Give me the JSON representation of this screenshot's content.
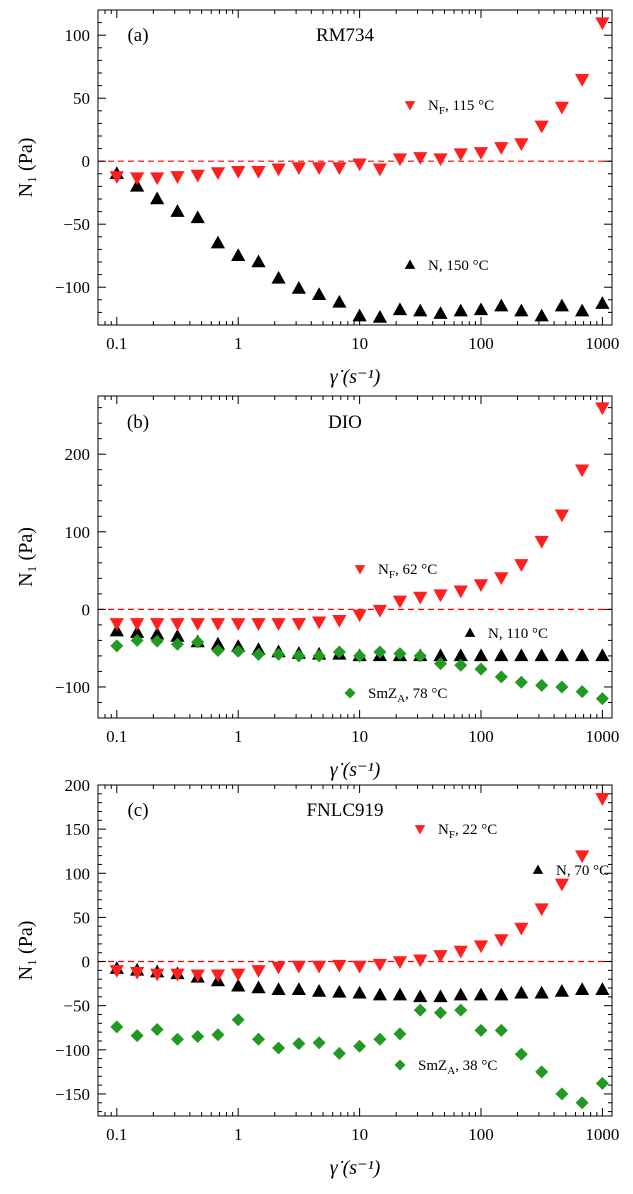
{
  "chart_data": [
    {
      "type": "scatter",
      "panel_label": "(a)",
      "title": "RM734",
      "xlabel": "γ̇ (s⁻¹)",
      "ylabel": "N₁ (Pa)",
      "xscale": "log",
      "xlim": [
        0.07,
        1200
      ],
      "ylim": [
        -130,
        120
      ],
      "xticks": [
        0.1,
        1,
        10,
        100,
        1000
      ],
      "xtick_labels": [
        "0.1",
        "1",
        "10",
        "100",
        "1000"
      ],
      "yticks": [
        -100,
        -50,
        0,
        50,
        100
      ],
      "ytick_labels": [
        "−100",
        "−50",
        "0",
        "50",
        "100"
      ],
      "reference_line": {
        "y": 0,
        "style": "dashed",
        "color": "#ff0000"
      },
      "series": [
        {
          "name": "N",
          "legend_main": "N",
          "legend_sub": "",
          "legend_rest": ", 150 °C",
          "marker": "triangle-up",
          "color": "#000000",
          "legend_position": "lower-middle",
          "x": [
            0.1,
            0.147,
            0.215,
            0.316,
            0.464,
            0.681,
            1.0,
            1.47,
            2.15,
            3.16,
            4.64,
            6.81,
            10.0,
            14.7,
            21.5,
            31.6,
            46.4,
            68.1,
            100,
            147,
            215,
            316,
            464,
            681,
            1000
          ],
          "y": [
            -10,
            -20,
            -30,
            -40,
            -45,
            -65,
            -75,
            -80,
            -93,
            -101,
            -106,
            -112,
            -123,
            -124,
            -118,
            -119,
            -121,
            -119,
            -118,
            -115,
            -119,
            -123,
            -115,
            -119,
            -113
          ]
        },
        {
          "name": "NF",
          "legend_main": "N",
          "legend_sub": "F",
          "legend_rest": ", 115 °C",
          "marker": "triangle-down",
          "color": "#ff1f1f",
          "legend_position": "upper-right",
          "x": [
            0.1,
            0.147,
            0.215,
            0.316,
            0.464,
            0.681,
            1.0,
            1.47,
            2.15,
            3.16,
            4.64,
            6.81,
            10.0,
            14.7,
            21.5,
            31.6,
            46.4,
            68.1,
            100,
            147,
            215,
            316,
            464,
            681,
            1000
          ],
          "y": [
            -12,
            -13,
            -13,
            -12,
            -11,
            -9,
            -8,
            -8,
            -6,
            -5,
            -5,
            -5,
            -2,
            -6,
            2,
            3,
            2,
            6,
            7,
            11,
            14,
            28,
            43,
            65,
            110
          ]
        }
      ]
    },
    {
      "type": "scatter",
      "panel_label": "(b)",
      "title": "DIO",
      "xlabel": "γ̇ (s⁻¹)",
      "ylabel": "N₁ (Pa)",
      "xscale": "log",
      "xlim": [
        0.07,
        1200
      ],
      "ylim": [
        -140,
        275
      ],
      "xticks": [
        0.1,
        1,
        10,
        100,
        1000
      ],
      "xtick_labels": [
        "0.1",
        "1",
        "10",
        "100",
        "1000"
      ],
      "yticks": [
        -100,
        0,
        100,
        200
      ],
      "ytick_labels": [
        "−100",
        "0",
        "100",
        "200"
      ],
      "reference_line": {
        "y": 0,
        "style": "dashed",
        "color": "#ff0000"
      },
      "series": [
        {
          "name": "N",
          "legend_main": "N",
          "legend_sub": "",
          "legend_rest": ", 110 °C",
          "marker": "triangle-up",
          "color": "#000000",
          "legend_position": "middle-right",
          "x": [
            0.1,
            0.147,
            0.215,
            0.316,
            0.464,
            0.681,
            1.0,
            1.47,
            2.15,
            3.16,
            4.64,
            6.81,
            10.0,
            14.7,
            21.5,
            31.6,
            46.4,
            68.1,
            100,
            147,
            215,
            316,
            464,
            681,
            1000
          ],
          "y": [
            -28,
            -30,
            -32,
            -35,
            -42,
            -45,
            -48,
            -52,
            -55,
            -57,
            -58,
            -58,
            -60,
            -60,
            -60,
            -60,
            -60,
            -60,
            -60,
            -60,
            -60,
            -60,
            -60,
            -60,
            -60
          ]
        },
        {
          "name": "NF",
          "legend_main": "N",
          "legend_sub": "F",
          "legend_rest": ", 62 °C",
          "marker": "triangle-down",
          "color": "#ff1f1f",
          "legend_position": "center",
          "x": [
            0.1,
            0.147,
            0.215,
            0.316,
            0.464,
            0.681,
            1.0,
            1.47,
            2.15,
            3.16,
            4.64,
            6.81,
            10.0,
            14.7,
            21.5,
            31.6,
            46.4,
            68.1,
            100,
            147,
            215,
            316,
            464,
            681,
            1000
          ],
          "y": [
            -18,
            -18,
            -18,
            -18,
            -18,
            -18,
            -18,
            -18,
            -18,
            -18,
            -16,
            -14,
            -7,
            -1,
            11,
            16,
            19,
            24,
            32,
            41,
            58,
            88,
            122,
            180,
            260
          ]
        },
        {
          "name": "SmZA",
          "legend_main": "SmZ",
          "legend_sub": "A",
          "legend_rest": ", 78 °C",
          "marker": "diamond",
          "color": "#229922",
          "legend_position": "lower-middle",
          "x": [
            0.1,
            0.147,
            0.215,
            0.316,
            0.464,
            0.681,
            1.0,
            1.47,
            2.15,
            3.16,
            4.64,
            6.81,
            10.0,
            14.7,
            21.5,
            31.6,
            46.4,
            68.1,
            100,
            147,
            215,
            316,
            464,
            681,
            1000
          ],
          "y": [
            -47,
            -40,
            -41,
            -45,
            -42,
            -53,
            -54,
            -58,
            -58,
            -60,
            -60,
            -55,
            -60,
            -55,
            -57,
            -60,
            -70,
            -72,
            -77,
            -87,
            -94,
            -98,
            -100,
            -106,
            -115
          ]
        }
      ]
    },
    {
      "type": "scatter",
      "panel_label": "(c)",
      "title": "FNLC919",
      "xlabel": "γ̇ (s⁻¹)",
      "ylabel": "N₁ (Pa)",
      "xscale": "log",
      "xlim": [
        0.07,
        1200
      ],
      "ylim": [
        -175,
        200
      ],
      "xticks": [
        0.1,
        1,
        10,
        100,
        1000
      ],
      "xtick_labels": [
        "0.1",
        "1",
        "10",
        "100",
        "1000"
      ],
      "yticks": [
        -150,
        -100,
        -50,
        0,
        50,
        100,
        150,
        200
      ],
      "ytick_labels": [
        "−150",
        "−100",
        "−50",
        "0",
        "50",
        "100",
        "150",
        "200"
      ],
      "reference_line": {
        "y": 0,
        "style": "dashed",
        "color": "#ff0000"
      },
      "series": [
        {
          "name": "N",
          "legend_main": "N",
          "legend_sub": "",
          "legend_rest": ", 70 °C",
          "marker": "triangle-up",
          "color": "#000000",
          "legend_position": "middle-right",
          "x": [
            0.1,
            0.147,
            0.215,
            0.316,
            0.464,
            0.681,
            1.0,
            1.47,
            2.15,
            3.16,
            4.64,
            6.81,
            10.0,
            14.7,
            21.5,
            31.6,
            46.4,
            68.1,
            100,
            147,
            215,
            316,
            464,
            681,
            1000
          ],
          "y": [
            -8,
            -10,
            -12,
            -14,
            -18,
            -22,
            -28,
            -30,
            -32,
            -32,
            -34,
            -35,
            -36,
            -38,
            -38,
            -40,
            -40,
            -38,
            -38,
            -38,
            -36,
            -36,
            -34,
            -32,
            -32
          ]
        },
        {
          "name": "NF",
          "legend_main": "N",
          "legend_sub": "F",
          "legend_rest": ", 22 °C",
          "marker": "triangle-down",
          "color": "#ff1f1f",
          "legend_position": "upper-middle",
          "x": [
            0.1,
            0.147,
            0.215,
            0.316,
            0.464,
            0.681,
            1.0,
            1.47,
            2.15,
            3.16,
            4.64,
            6.81,
            10.0,
            14.7,
            21.5,
            31.6,
            46.4,
            68.1,
            100,
            147,
            215,
            316,
            464,
            681,
            1000
          ],
          "y": [
            -10,
            -12,
            -14,
            -14,
            -15,
            -15,
            -14,
            -10,
            -6,
            -5,
            -5,
            -4,
            -5,
            -3,
            0,
            2,
            7,
            12,
            18,
            25,
            38,
            60,
            88,
            120,
            185
          ]
        },
        {
          "name": "SmZA",
          "legend_main": "SmZ",
          "legend_sub": "A",
          "legend_rest": ", 38 °C",
          "marker": "diamond",
          "color": "#229922",
          "legend_position": "lower-right",
          "x": [
            0.1,
            0.147,
            0.215,
            0.316,
            0.464,
            0.681,
            1.0,
            1.47,
            2.15,
            3.16,
            4.64,
            6.81,
            10.0,
            14.7,
            21.5,
            31.6,
            46.4,
            68.1,
            100,
            147,
            215,
            316,
            464,
            681,
            1000
          ],
          "y": [
            -74,
            -84,
            -77,
            -88,
            -85,
            -83,
            -66,
            -88,
            -98,
            -93,
            -92,
            -104,
            -96,
            -88,
            -82,
            -55,
            -58,
            -55,
            -78,
            -78,
            -105,
            -125,
            -150,
            -160,
            -138
          ]
        }
      ]
    }
  ]
}
